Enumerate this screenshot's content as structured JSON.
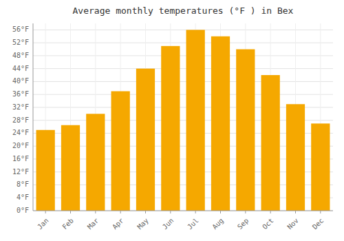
{
  "chart_data": {
    "type": "bar",
    "title": "Average monthly temperatures (°F ) in Bex",
    "categories": [
      "Jan",
      "Feb",
      "Mar",
      "Apr",
      "May",
      "Jun",
      "Jul",
      "Aug",
      "Sep",
      "Oct",
      "Nov",
      "Dec"
    ],
    "values": [
      25,
      26.5,
      30,
      37,
      44,
      51,
      56,
      54,
      50,
      42,
      33,
      27
    ],
    "color": "#F5A800",
    "ylim": [
      0,
      58
    ],
    "yticks": [
      {
        "value": 0,
        "label": "0°F"
      },
      {
        "value": 4,
        "label": "4°F"
      },
      {
        "value": 8,
        "label": "8°F"
      },
      {
        "value": 12,
        "label": "12°F"
      },
      {
        "value": 16,
        "label": "16°F"
      },
      {
        "value": 20,
        "label": "20°F"
      },
      {
        "value": 24,
        "label": "24°F"
      },
      {
        "value": 28,
        "label": "28°F"
      },
      {
        "value": 32,
        "label": "32°F"
      },
      {
        "value": 36,
        "label": "36°F"
      },
      {
        "value": 40,
        "label": "40°F"
      },
      {
        "value": 44,
        "label": "44°F"
      },
      {
        "value": 48,
        "label": "48°F"
      },
      {
        "value": 52,
        "label": "52°F"
      },
      {
        "value": 56,
        "label": "56°F"
      }
    ],
    "grid": true
  }
}
